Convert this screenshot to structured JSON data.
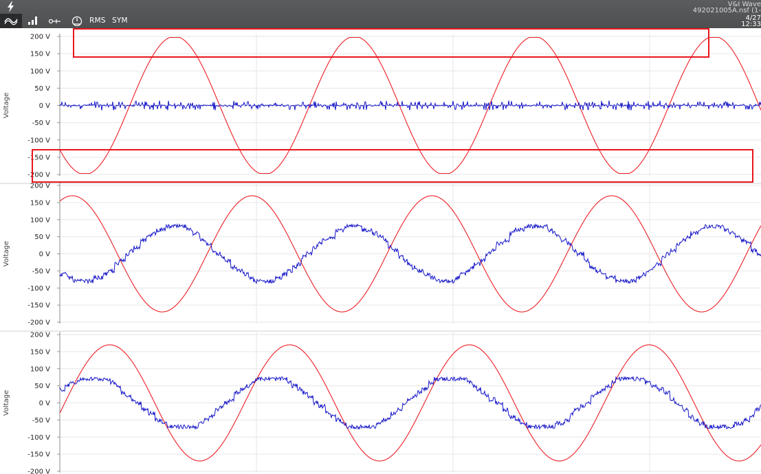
{
  "app": {
    "info_title": "V&I Wave",
    "info_file": "492021005A.nsf (1-",
    "info_date": "4/27",
    "info_time": "12:33"
  },
  "toolbar": {
    "rms_label": "RMS",
    "sym_label": "SYM",
    "icons": [
      "bolt-icon",
      "waveform-icon",
      "bar-chart-icon",
      "probe-icon",
      "gauge-icon"
    ]
  },
  "colors": {
    "voltage_trace": "#ee1c24",
    "secondary_trace": "#1414c8",
    "highlight": "#e8141b",
    "grid": "#e6e6e6"
  },
  "chart_data": [
    {
      "type": "line",
      "ylabel": "Voltage",
      "yticks": [
        "200 V",
        "150 V",
        "100 V",
        "50 V",
        "0 V",
        "-50 V",
        "-100 V",
        "-150 V",
        "-200 V"
      ],
      "ylim": [
        -200,
        200
      ],
      "grid": true,
      "series": [
        {
          "color": "#ee1c24",
          "shape": "sine",
          "amplitude": 200,
          "cycles": 3.9,
          "phase_deg": 220,
          "flattened_peaks": true
        },
        {
          "color": "#1414c8",
          "shape": "noise",
          "amplitude": 10
        }
      ]
    },
    {
      "type": "line",
      "ylabel": "Voltage",
      "yticks": [
        "200 V",
        "150 V",
        "100 V",
        "50 V",
        "0 V",
        "-50 V",
        "-100 V",
        "-150 V",
        "-200 V"
      ],
      "ylim": [
        -200,
        200
      ],
      "grid": true,
      "series": [
        {
          "color": "#ee1c24",
          "shape": "sine",
          "amplitude": 170,
          "cycles": 3.9,
          "phase_deg": 65
        },
        {
          "color": "#1414c8",
          "shape": "stepped-sine",
          "amplitude": 80,
          "cycles": 3.9,
          "phase_deg": 225
        }
      ]
    },
    {
      "type": "line",
      "ylabel": "Voltage",
      "yticks": [
        "200 V",
        "150 V",
        "100 V",
        "50 V",
        "0 V",
        "-50 V",
        "-100 V",
        "-150 V",
        "-200 V"
      ],
      "ylim": [
        -200,
        200
      ],
      "grid": true,
      "series": [
        {
          "color": "#ee1c24",
          "shape": "sine",
          "amplitude": 170,
          "cycles": 3.9,
          "phase_deg": -10
        },
        {
          "color": "#1414c8",
          "shape": "stepped-sine",
          "amplitude": 75,
          "cycles": 3.9,
          "phase_deg": 30
        }
      ]
    }
  ]
}
